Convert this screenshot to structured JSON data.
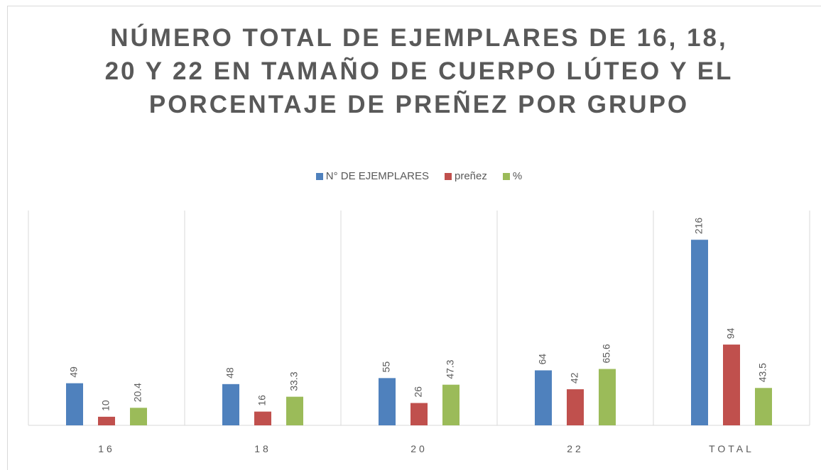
{
  "chart_data": {
    "type": "bar",
    "title": "NÚMERO TOTAL DE EJEMPLARES DE 16, 18, 20 Y 22 EN TAMAÑO DE CUERPO LÚTEO Y EL PORCENTAJE DE PREÑEZ POR GRUPO",
    "categories": [
      "16",
      "18",
      "20",
      "22",
      "TOTAL"
    ],
    "series": [
      {
        "name": "N° DE EJEMPLARES",
        "color": "#4f81bd",
        "values": [
          49,
          48,
          55,
          64,
          216
        ]
      },
      {
        "name": "preñez",
        "color": "#c0504d",
        "values": [
          10,
          16,
          26,
          42,
          94
        ]
      },
      {
        "name": "%",
        "color": "#9bbb59",
        "values": [
          20.4,
          33.3,
          47.3,
          65.6,
          43.5
        ]
      }
    ],
    "ylim": [
      0,
      250
    ],
    "legend": "top"
  }
}
